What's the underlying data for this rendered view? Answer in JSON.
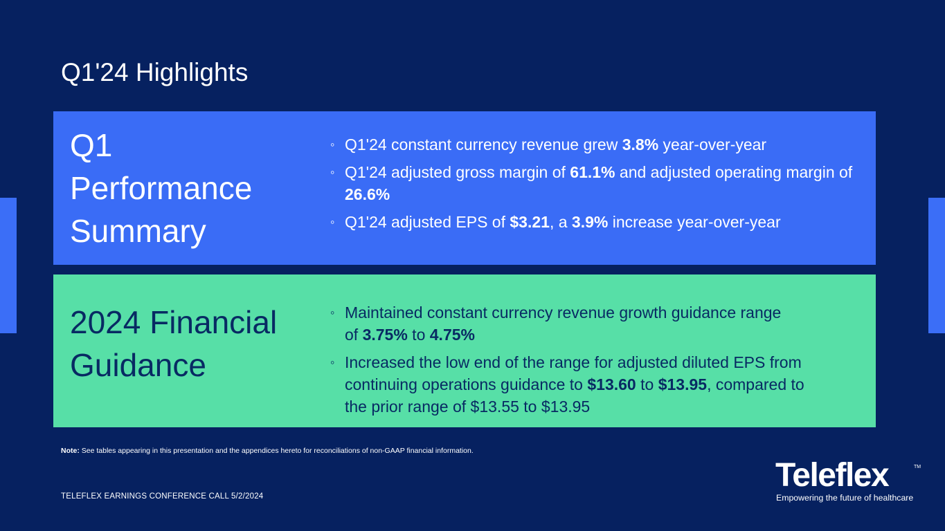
{
  "slide": {
    "title": "Q1'24 Highlights"
  },
  "performance": {
    "title_line1": "Q1",
    "title_line2": "Performance",
    "title_line3": "Summary",
    "bullet_marker": "◦",
    "b1": {
      "t1": "Q1'24 constant currency revenue grew ",
      "v1": "3.8%",
      "t2": " year-over-year"
    },
    "b2": {
      "t1": "Q1'24 adjusted gross margin of ",
      "v1": "61.1%",
      "t2": " and adjusted operating margin of ",
      "v2": "26.6%"
    },
    "b3": {
      "t1": "Q1'24 adjusted EPS of ",
      "v1": "$3.21",
      "t2": ", a ",
      "v2": "3.9%",
      "t3": " increase year-over-year"
    }
  },
  "guidance": {
    "title_line1": "2024 Financial",
    "title_line2": "Guidance",
    "bullet_marker": "◦",
    "b1": {
      "t1": "Maintained constant currency revenue growth guidance range of ",
      "v1": "3.75%",
      "t2": " to ",
      "v2": "4.75%"
    },
    "b2": {
      "t1": "Increased the low end of the range for adjusted diluted EPS from continuing operations guidance to ",
      "v1": "$13.60",
      "t2": " to ",
      "v2": "$13.95",
      "t3": ", compared to the prior range of $13.55 to $13.95"
    }
  },
  "note": {
    "label": "Note:",
    "text": " See tables appearing in this presentation and the appendices hereto for reconciliations of non-GAAP financial information."
  },
  "footer": {
    "text": "TELEFLEX EARNINGS CONFERENCE CALL 5/2/2024"
  },
  "logo": {
    "wordmark": "Teleflex",
    "trademark": "TM",
    "tagline": "Empowering the future of healthcare"
  },
  "colors": {
    "background": "#062160",
    "performance_panel": "#3a6cf6",
    "guidance_panel": "#57dfa7",
    "guidance_text": "#082a63"
  }
}
